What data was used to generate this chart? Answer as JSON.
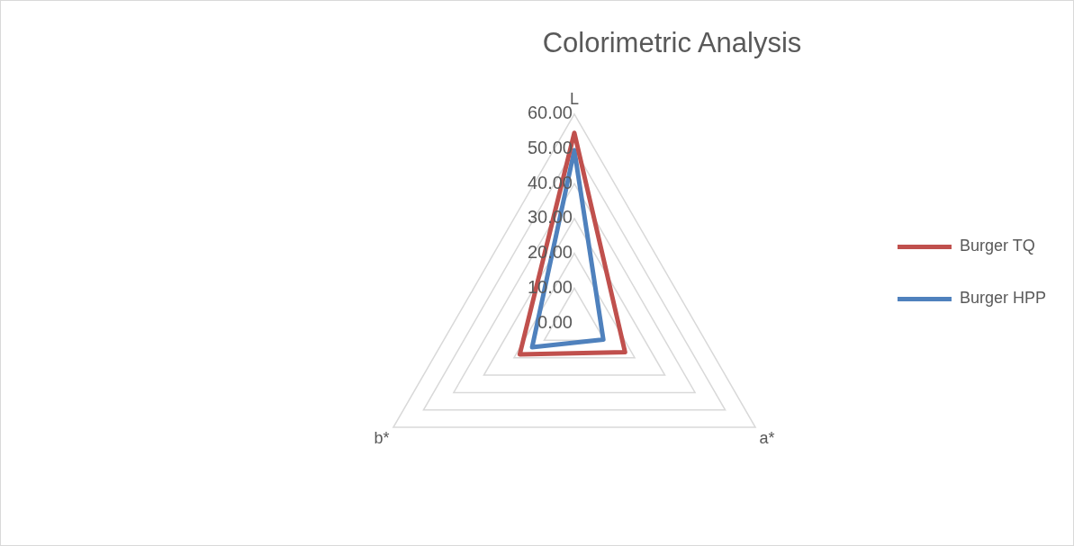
{
  "chart_data": {
    "type": "radar",
    "title": "Colorimetric Analysis",
    "categories": [
      "L",
      "a*",
      "b*"
    ],
    "series": [
      {
        "name": "Burger TQ",
        "color": "#c0504d",
        "values": [
          54.6,
          16.8,
          18.1
        ]
      },
      {
        "name": "Burger HPP",
        "color": "#4f81bd",
        "values": [
          49.6,
          9.6,
          14.0
        ]
      }
    ],
    "ylim": [
      0,
      60
    ],
    "yticks": [
      {
        "value": 0,
        "label": "0.00"
      },
      {
        "value": 10,
        "label": "10.00"
      },
      {
        "value": 20,
        "label": "20.00"
      },
      {
        "value": 30,
        "label": "30.00"
      },
      {
        "value": 40,
        "label": "40.00"
      },
      {
        "value": 50,
        "label": "50.00"
      },
      {
        "value": 60,
        "label": "60.00"
      }
    ],
    "grid": true,
    "legend": "right",
    "marker": "none",
    "line_style": "solid"
  }
}
